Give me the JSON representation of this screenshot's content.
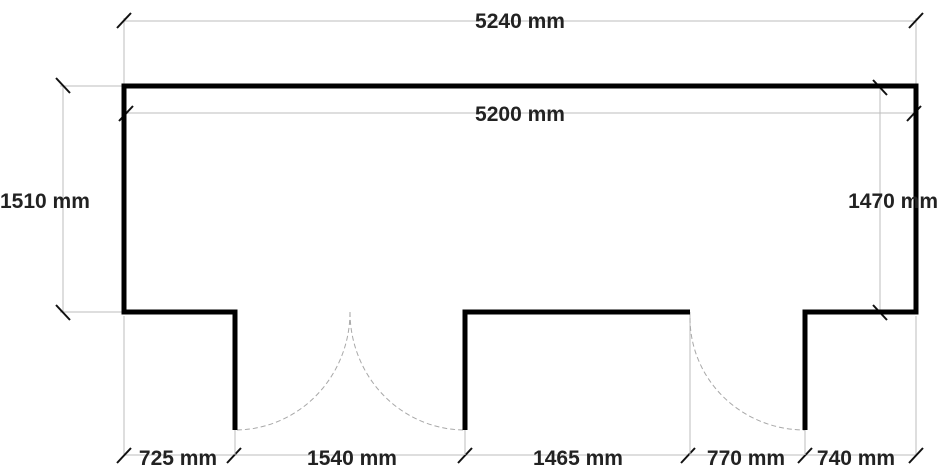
{
  "dimensions": {
    "overall_outer_width": "5240 mm",
    "overall_inner_width": "5200 mm",
    "left_height": "1510 mm",
    "right_height": "1470 mm",
    "bottom_segments": [
      "725 mm",
      "1540 mm",
      "1465 mm",
      "770 mm",
      "740 mm"
    ]
  },
  "colors": {
    "wall": "#000000",
    "dimension_line": "#bdbdbd",
    "door_swing": "#a8a8a8",
    "text": "#222222"
  }
}
